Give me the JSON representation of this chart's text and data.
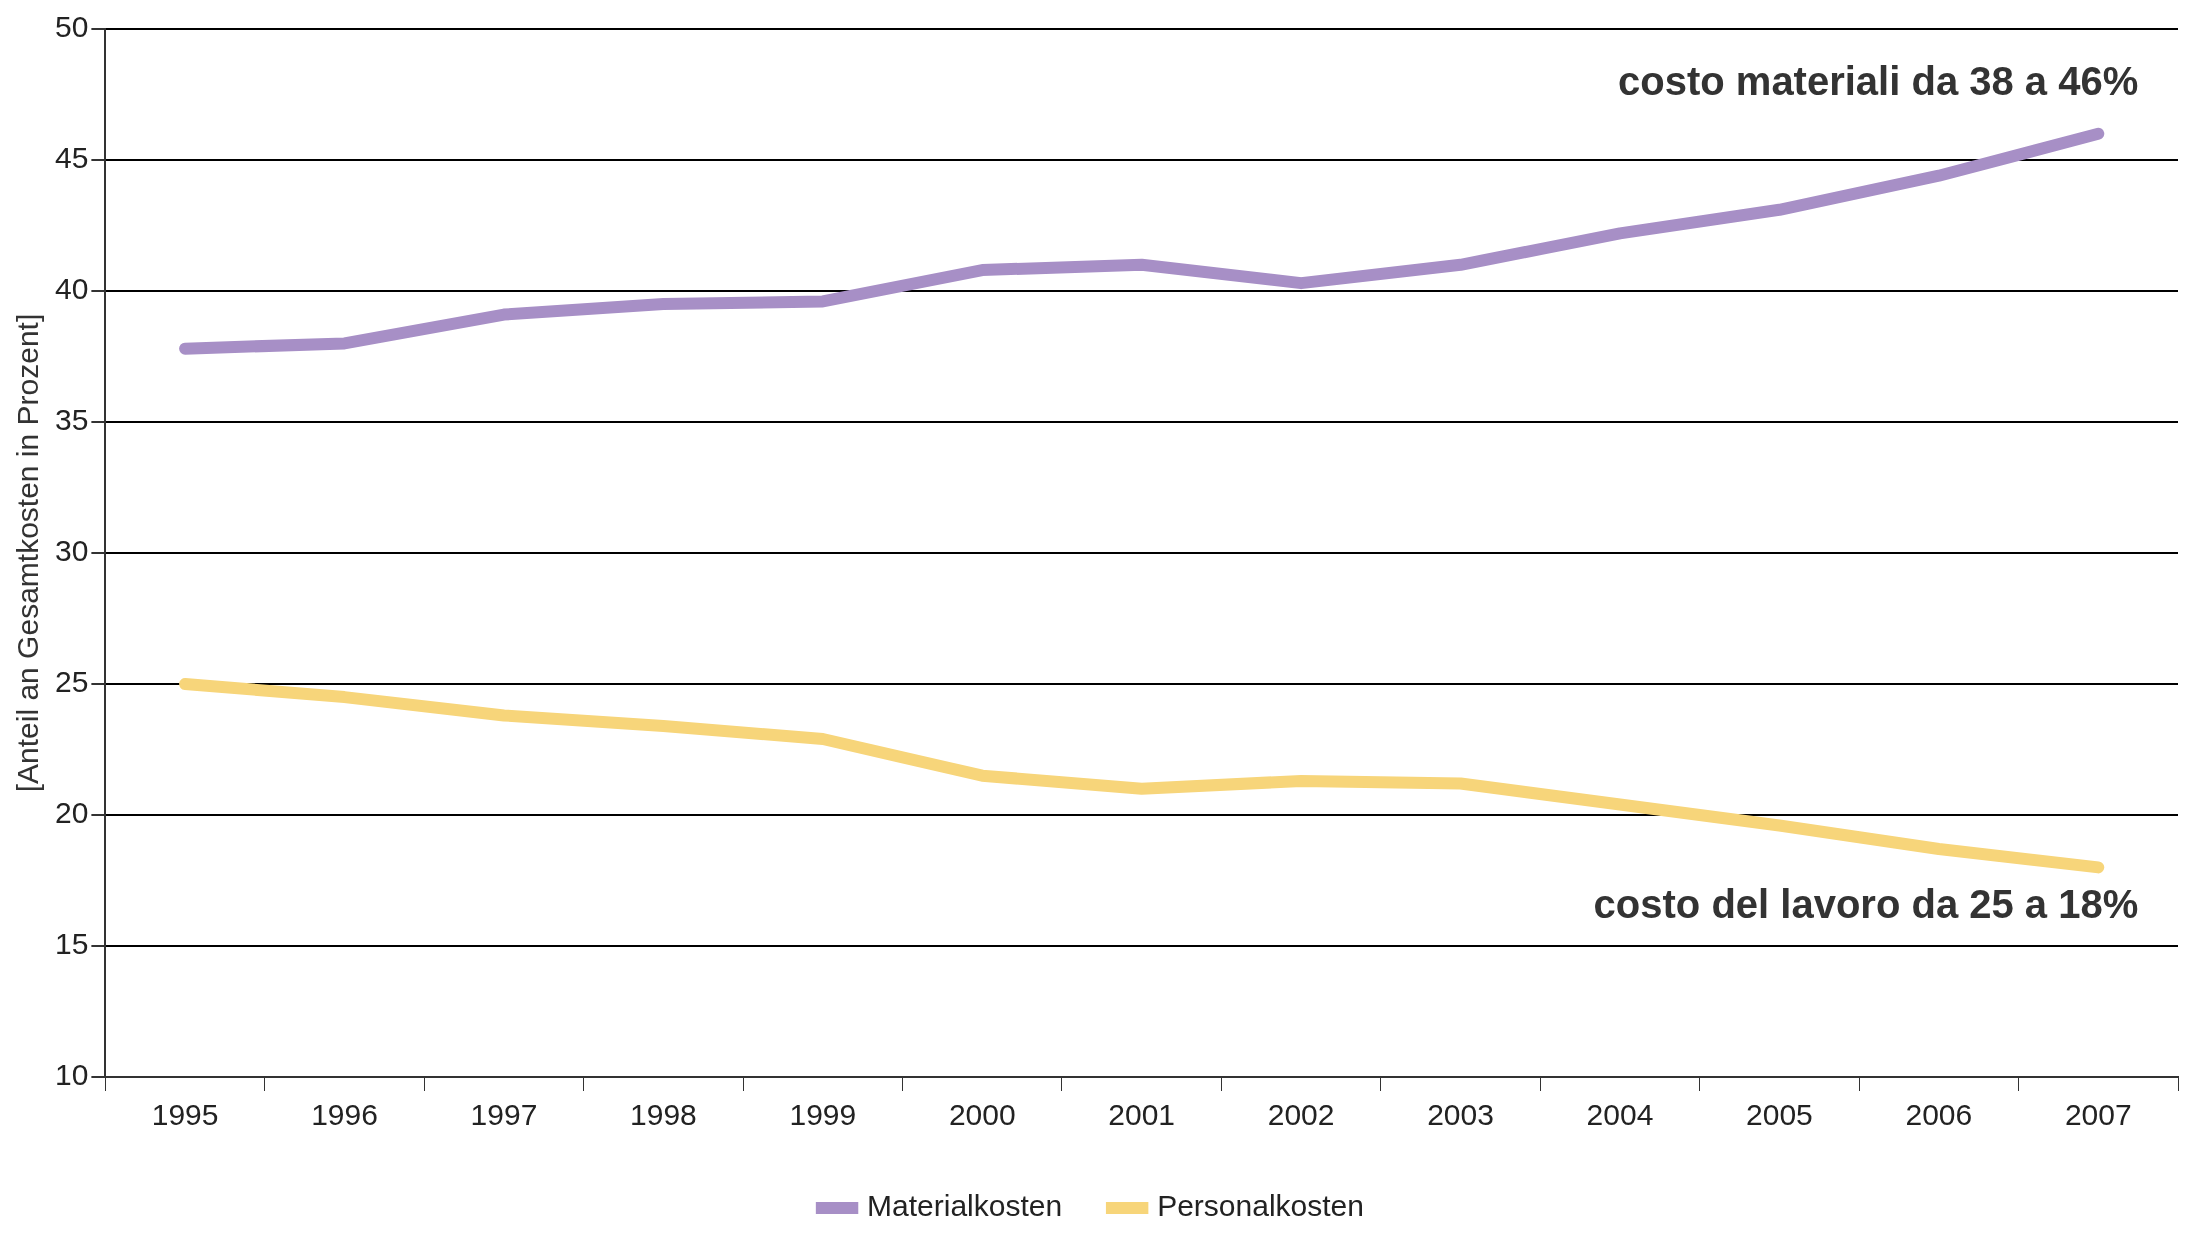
{
  "chart_data": {
    "type": "line",
    "ylabel": "[Anteil an Gesamtkosten in Prozent]",
    "categories": [
      "1995",
      "1996",
      "1997",
      "1998",
      "1999",
      "2000",
      "2001",
      "2002",
      "2003",
      "2004",
      "2005",
      "2006",
      "2007"
    ],
    "series": [
      {
        "name": "Materialkosten",
        "color": "#a78fc6",
        "values": [
          37.8,
          38.0,
          39.1,
          39.5,
          39.6,
          40.8,
          41.0,
          40.3,
          41.0,
          42.2,
          43.1,
          44.4,
          46.0
        ]
      },
      {
        "name": "Personalkosten",
        "color": "#f7d57a",
        "values": [
          25.0,
          24.5,
          23.8,
          23.4,
          22.9,
          21.5,
          21.0,
          21.3,
          21.2,
          20.4,
          19.6,
          18.7,
          18.0
        ]
      }
    ],
    "ylim": [
      10,
      50
    ],
    "yticks": [
      10,
      15,
      20,
      25,
      30,
      35,
      40,
      45,
      50
    ],
    "grid": "y",
    "legend": "bottom",
    "marker": "none",
    "line_style": "solid",
    "annotations": [
      {
        "text": "costo materiali da 38 a 46%",
        "x": "2007",
        "y": 46.0
      },
      {
        "text": "costo del lavoro da 25 a 18%",
        "x": "2007",
        "y": 18.0
      }
    ]
  }
}
